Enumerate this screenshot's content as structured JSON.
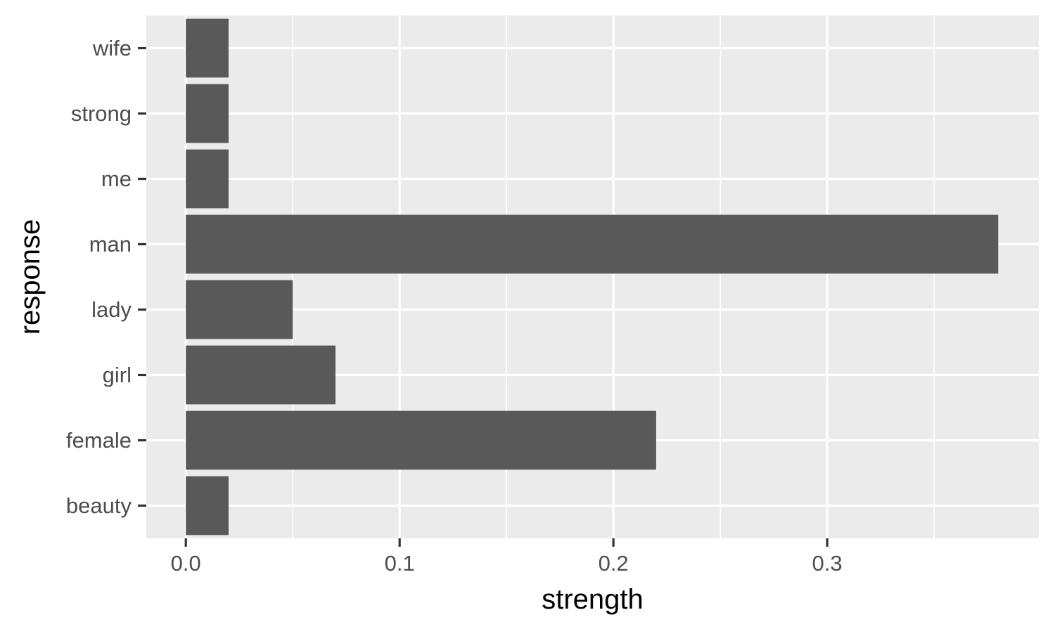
{
  "chart_data": {
    "type": "bar",
    "orientation": "horizontal",
    "categories": [
      "beauty",
      "female",
      "girl",
      "lady",
      "man",
      "me",
      "strong",
      "wife"
    ],
    "values": [
      0.02,
      0.22,
      0.07,
      0.05,
      0.38,
      0.02,
      0.02,
      0.02
    ],
    "xlabel": "strength",
    "ylabel": "response",
    "xlim": [
      -0.0185,
      0.399
    ],
    "x_ticks": [
      0.0,
      0.1,
      0.2,
      0.3
    ],
    "x_tick_labels": [
      "0.0",
      "0.1",
      "0.2",
      "0.3"
    ],
    "x_minor_ticks": [
      0.05,
      0.15,
      0.25,
      0.35
    ],
    "grid": true,
    "legend": "none",
    "colors": {
      "bar": "#595959",
      "panel_background": "#ebebeb",
      "grid_major": "#ffffff",
      "grid_minor": "#ffffff",
      "tick_mark": "#333333",
      "tick_label": "#4d4d4d",
      "axis_title": "#000000"
    }
  }
}
